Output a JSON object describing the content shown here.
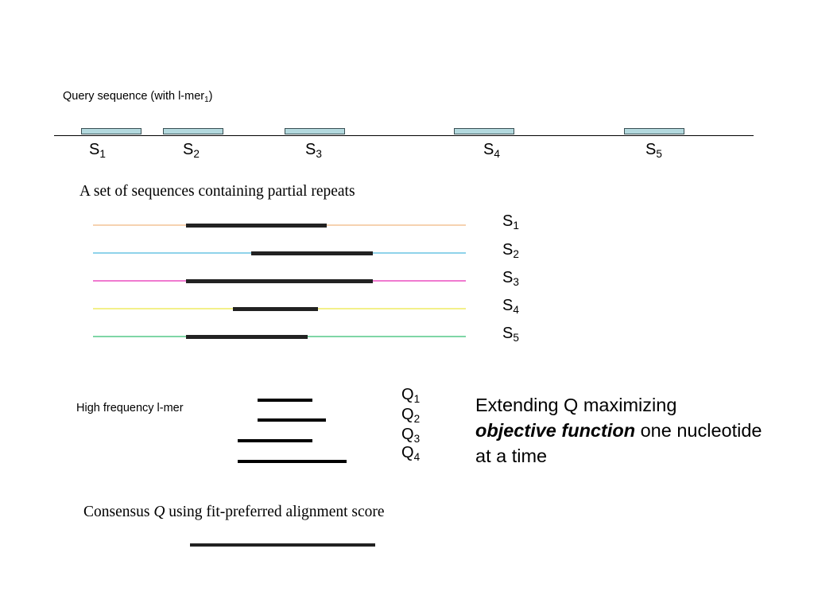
{
  "query": {
    "title": "Query sequence  (with l-mer",
    "title_sub": "1",
    "title_close": ")",
    "segments": [
      {
        "letter": "S",
        "sub": "1"
      },
      {
        "letter": "S",
        "sub": "2"
      },
      {
        "letter": "S",
        "sub": "3"
      },
      {
        "letter": "S",
        "sub": "4"
      },
      {
        "letter": "S",
        "sub": "5"
      }
    ],
    "segment_color": "#b3d9de"
  },
  "repeats": {
    "title": "A set of sequences containing partial repeats",
    "sequences": [
      {
        "letter": "S",
        "sub": "1",
        "color": "#f6d2b0"
      },
      {
        "letter": "S",
        "sub": "2",
        "color": "#8fd3ea"
      },
      {
        "letter": "S",
        "sub": "3",
        "color": "#f07ad0"
      },
      {
        "letter": "S",
        "sub": "4",
        "color": "#f3f08a"
      },
      {
        "letter": "S",
        "sub": "5",
        "color": "#7fd6a6"
      }
    ]
  },
  "high_frequency": {
    "label": "High frequency l-mer",
    "lmers": [
      {
        "letter": "Q",
        "sub": "1"
      },
      {
        "letter": "Q",
        "sub": "2"
      },
      {
        "letter": "Q",
        "sub": "3"
      },
      {
        "letter": "Q",
        "sub": "4"
      }
    ]
  },
  "extending": {
    "line1": "Extending Q maximizing",
    "emphasis": "objective function",
    "line2_rest": " one nucleotide",
    "line3": "at a time"
  },
  "consensus": {
    "title_pre": "Consensus ",
    "title_q": "Q",
    "title_post": " using fit-preferred alignment score"
  }
}
